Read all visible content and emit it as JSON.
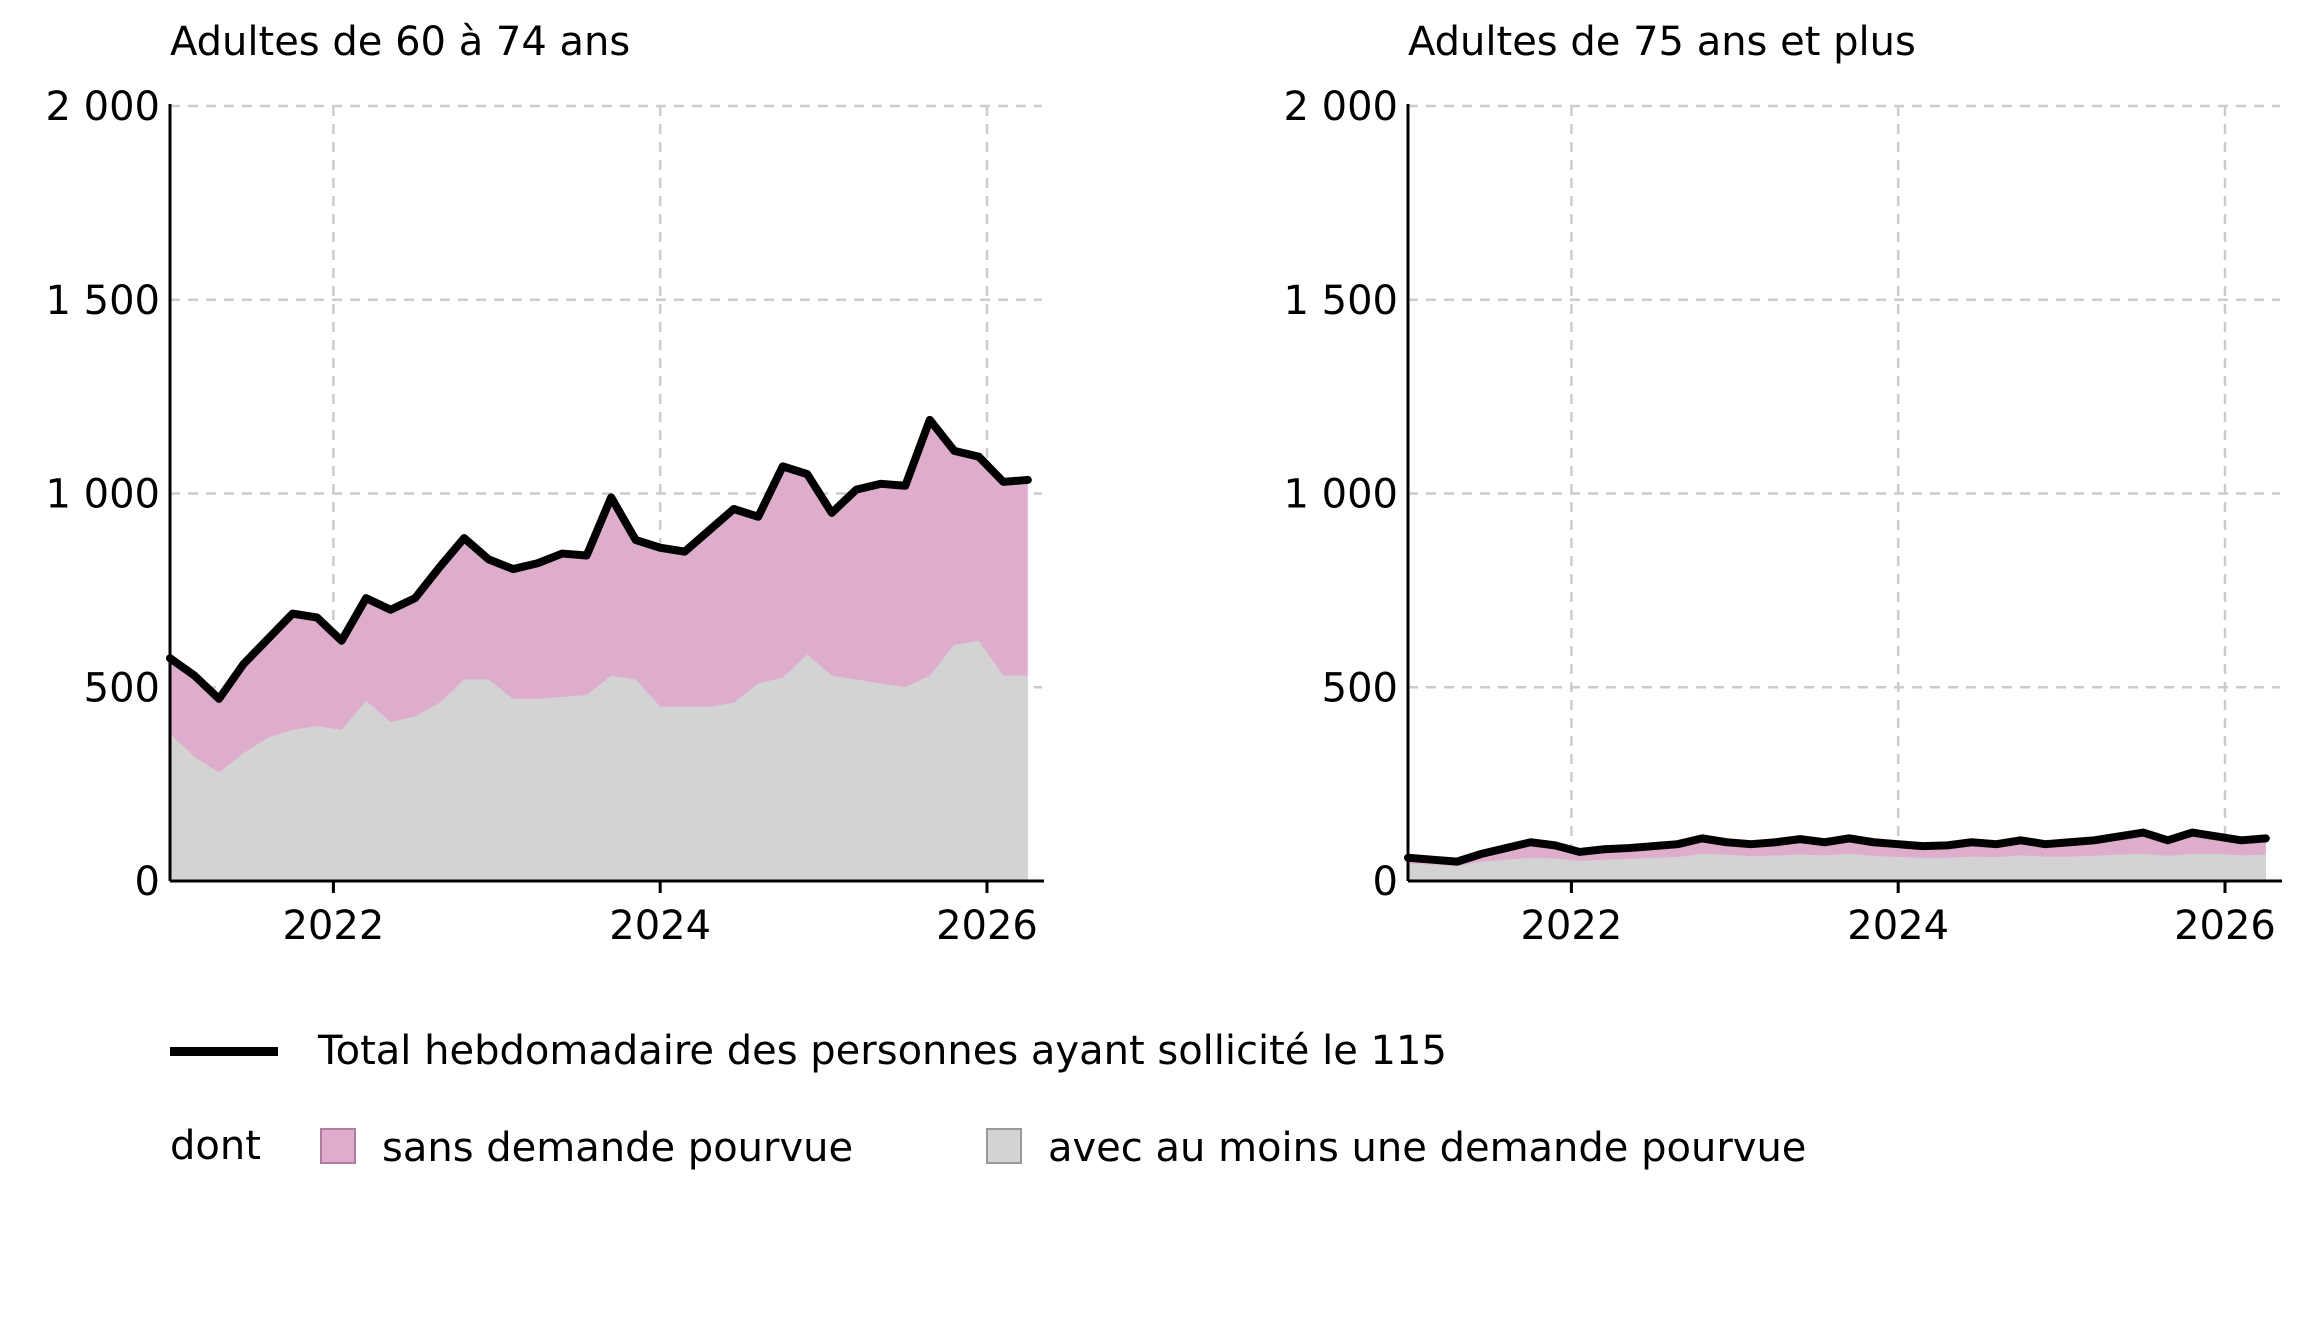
{
  "colors": {
    "total_line": "#000000",
    "sans_demande_pourvue": "#ddadcb",
    "avec_demande_pourvue": "#d3d3d3",
    "grid": "#cccccc",
    "sans_swatch_border": "#b07aa1",
    "avec_swatch_border": "#9a9a9a"
  },
  "legend": {
    "total": "Total hebdomadaire des personnes ayant sollicité le 115",
    "dont": "dont",
    "sans": "sans demande pourvue",
    "avec": "avec au moins une demande pourvue"
  },
  "chart_data": [
    {
      "type": "area",
      "title": "Adultes de 60 à 74 ans",
      "xlim": [
        2021.0,
        2026.3
      ],
      "ylim": [
        0,
        2000
      ],
      "x_ticks": [
        2022,
        2024,
        2026
      ],
      "x_tick_labels": [
        "2022",
        "2024",
        "2026"
      ],
      "y_ticks": [
        0,
        500,
        1000,
        1500,
        2000
      ],
      "y_tick_labels": [
        "0",
        "500",
        "1 000",
        "1 500",
        "2 000"
      ],
      "grid": true,
      "x": [
        2021.0,
        2021.15,
        2021.3,
        2021.45,
        2021.6,
        2021.75,
        2021.9,
        2022.05,
        2022.2,
        2022.35,
        2022.5,
        2022.65,
        2022.8,
        2022.95,
        2023.1,
        2023.25,
        2023.4,
        2023.55,
        2023.7,
        2023.85,
        2024.0,
        2024.15,
        2024.3,
        2024.45,
        2024.6,
        2024.75,
        2024.9,
        2025.05,
        2025.2,
        2025.35,
        2025.5,
        2025.65,
        2025.8,
        2025.95,
        2026.1,
        2026.25
      ],
      "series": [
        {
          "name": "Total hebdomadaire des personnes ayant sollicité le 115",
          "values": [
            575,
            530,
            470,
            560,
            625,
            690,
            680,
            620,
            730,
            700,
            730,
            810,
            885,
            830,
            805,
            820,
            845,
            840,
            990,
            880,
            860,
            850,
            905,
            960,
            940,
            1070,
            1050,
            950,
            1010,
            1025,
            1020,
            1190,
            1110,
            1095,
            1030,
            1035
          ]
        },
        {
          "name": "avec au moins une demande pourvue",
          "values": [
            380,
            320,
            280,
            330,
            370,
            390,
            400,
            390,
            465,
            410,
            425,
            460,
            520,
            520,
            470,
            470,
            475,
            480,
            530,
            520,
            450,
            450,
            450,
            460,
            510,
            525,
            585,
            530,
            520,
            510,
            500,
            530,
            610,
            620,
            530,
            530
          ]
        }
      ]
    },
    {
      "type": "area",
      "title": "Adultes de 75 ans et plus",
      "xlim": [
        2021.0,
        2026.3
      ],
      "ylim": [
        0,
        2000
      ],
      "x_ticks": [
        2022,
        2024,
        2026
      ],
      "x_tick_labels": [
        "2022",
        "2024",
        "2026"
      ],
      "y_ticks": [
        0,
        500,
        1000,
        1500,
        2000
      ],
      "y_tick_labels": [
        "0",
        "500",
        "1 000",
        "1 500",
        "2 000"
      ],
      "grid": true,
      "x": [
        2021.0,
        2021.15,
        2021.3,
        2021.45,
        2021.6,
        2021.75,
        2021.9,
        2022.05,
        2022.2,
        2022.35,
        2022.5,
        2022.65,
        2022.8,
        2022.95,
        2023.1,
        2023.25,
        2023.4,
        2023.55,
        2023.7,
        2023.85,
        2024.0,
        2024.15,
        2024.3,
        2024.45,
        2024.6,
        2024.75,
        2024.9,
        2025.05,
        2025.2,
        2025.35,
        2025.5,
        2025.65,
        2025.8,
        2025.95,
        2026.1,
        2026.25
      ],
      "series": [
        {
          "name": "Total hebdomadaire des personnes ayant sollicité le 115",
          "values": [
            60,
            55,
            50,
            70,
            85,
            100,
            92,
            75,
            82,
            85,
            90,
            95,
            110,
            100,
            95,
            100,
            108,
            100,
            110,
            100,
            95,
            90,
            92,
            100,
            95,
            105,
            95,
            100,
            105,
            115,
            125,
            105,
            125,
            115,
            105,
            110
          ]
        },
        {
          "name": "avec au moins une demande pourvue",
          "values": [
            45,
            42,
            38,
            50,
            55,
            60,
            58,
            52,
            55,
            57,
            60,
            62,
            70,
            68,
            64,
            66,
            68,
            66,
            70,
            65,
            62,
            60,
            60,
            63,
            62,
            66,
            63,
            63,
            65,
            68,
            70,
            65,
            70,
            70,
            66,
            68
          ]
        }
      ]
    }
  ]
}
